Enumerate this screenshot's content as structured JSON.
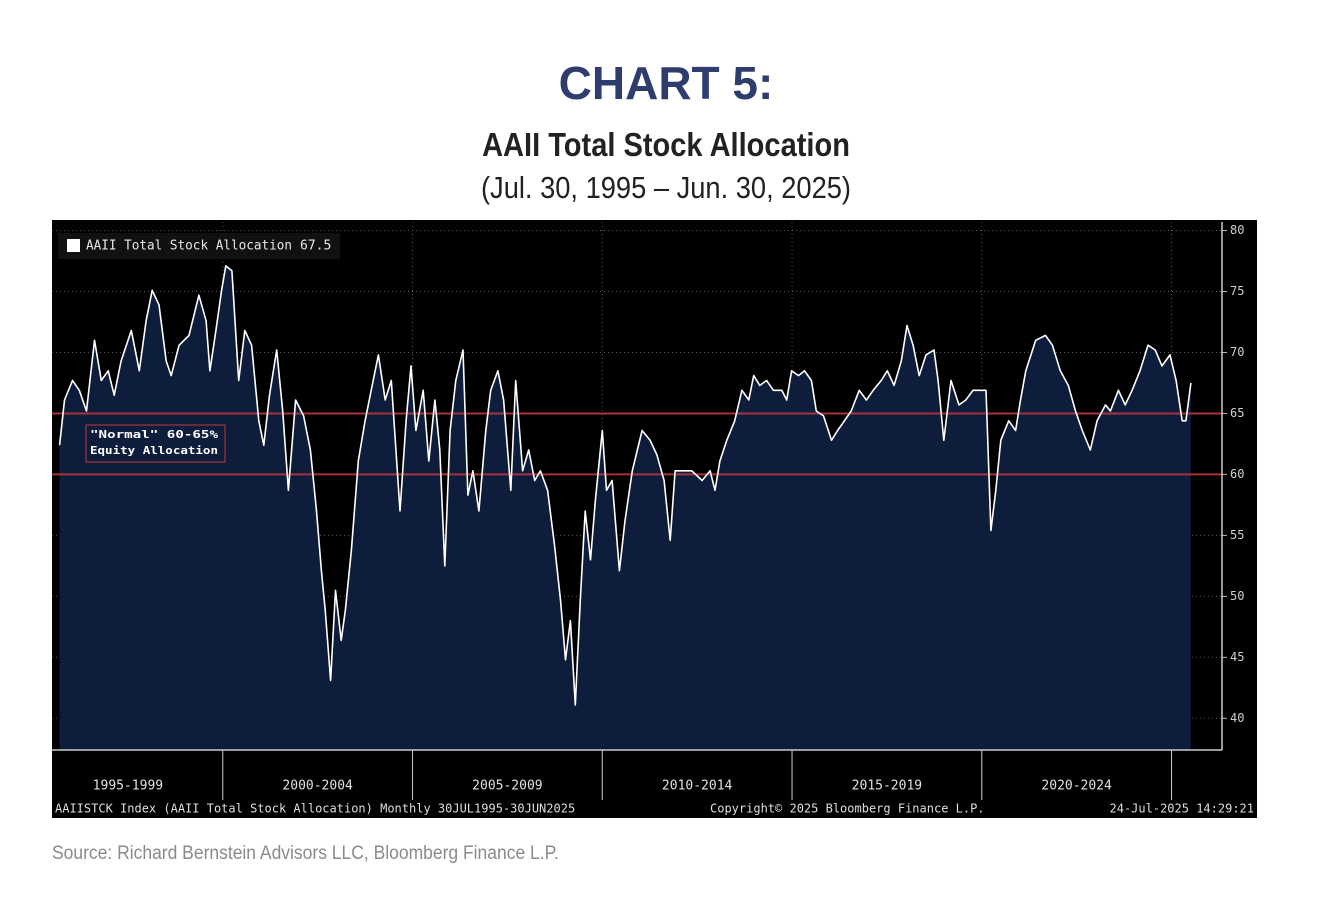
{
  "chart_data": {
    "type": "area",
    "title": "CHART 5:",
    "subtitle": "AAII Total Stock Allocation",
    "date_range": "(Jul. 30, 1995 – Jun. 30, 2025)",
    "source": "Source: Richard Bernstein Advisors LLC, Bloomberg Finance L.P.",
    "footer": [
      "AAIISTCK Index (AAII Total Stock Allocation) Monthly 30JUL1995-30JUN2025",
      "Copyright© 2025 Bloomberg Finance L.P.",
      "24-Jul-2025 14:29:21"
    ],
    "legend_value": 67.5,
    "annotation": [
      "\"Normal\" 60-65%",
      "Equity Allocation"
    ],
    "reference_lines": [
      60,
      65
    ],
    "reference_color": "#a8323c",
    "y_axis_side": "right",
    "grid": true,
    "xlim": [
      1995.5,
      2026.33
    ],
    "ylim": [
      37.4,
      80.7
    ],
    "yticks": [
      40,
      45,
      50,
      55,
      60,
      65,
      70,
      75,
      80
    ],
    "xticks": [
      {
        "value": 1997.5,
        "label": "1995-1999"
      },
      {
        "value": 2002.5,
        "label": "2000-2004"
      },
      {
        "value": 2007.5,
        "label": "2005-2009"
      },
      {
        "value": 2012.5,
        "label": "2010-2014"
      },
      {
        "value": 2017.5,
        "label": "2015-2019"
      },
      {
        "value": 2022.5,
        "label": "2020-2024"
      }
    ],
    "x": [
      1995.7,
      1995.83,
      1996.04,
      1996.22,
      1996.41,
      1996.62,
      1996.8,
      1996.98,
      1997.14,
      1997.32,
      1997.59,
      1997.8,
      1997.98,
      1998.14,
      1998.32,
      1998.51,
      1998.64,
      1998.85,
      1999.11,
      1999.37,
      1999.56,
      1999.66,
      1999.82,
      1999.97,
      2000.08,
      2000.24,
      2000.42,
      2000.58,
      2000.76,
      2000.95,
      2001.08,
      2001.23,
      2001.42,
      2001.58,
      2001.73,
      2001.92,
      2002.13,
      2002.31,
      2002.47,
      2002.6,
      2002.7,
      2002.84,
      2002.97,
      2003.12,
      2003.23,
      2003.39,
      2003.57,
      2003.75,
      2003.91,
      2004.1,
      2004.28,
      2004.44,
      2004.67,
      2004.83,
      2004.96,
      2005.09,
      2005.28,
      2005.43,
      2005.59,
      2005.72,
      2005.85,
      2005.99,
      2006.14,
      2006.33,
      2006.46,
      2006.59,
      2006.75,
      2006.93,
      2007.06,
      2007.25,
      2007.4,
      2007.59,
      2007.72,
      2007.9,
      2008.06,
      2008.22,
      2008.37,
      2008.56,
      2008.74,
      2008.9,
      2009.03,
      2009.16,
      2009.29,
      2009.42,
      2009.55,
      2009.69,
      2009.82,
      2010.0,
      2010.11,
      2010.26,
      2010.45,
      2010.6,
      2010.79,
      2011.05,
      2011.26,
      2011.44,
      2011.63,
      2011.79,
      2011.92,
      2012.1,
      2012.36,
      2012.63,
      2012.84,
      2012.97,
      2013.1,
      2013.28,
      2013.49,
      2013.68,
      2013.86,
      2013.99,
      2014.15,
      2014.33,
      2014.51,
      2014.73,
      2014.86,
      2014.99,
      2015.17,
      2015.33,
      2015.51,
      2015.64,
      2015.83,
      2016.04,
      2016.2,
      2016.38,
      2016.56,
      2016.77,
      2016.96,
      2017.14,
      2017.35,
      2017.51,
      2017.69,
      2017.88,
      2018.03,
      2018.19,
      2018.35,
      2018.53,
      2018.74,
      2018.85,
      2019.0,
      2019.19,
      2019.4,
      2019.58,
      2019.77,
      2019.92,
      2020.11,
      2020.24,
      2020.37,
      2020.5,
      2020.71,
      2020.89,
      2021.02,
      2021.16,
      2021.42,
      2021.68,
      2021.86,
      2022.07,
      2022.28,
      2022.47,
      2022.65,
      2022.86,
      2023.04,
      2023.26,
      2023.39,
      2023.6,
      2023.78,
      2023.96,
      2024.17,
      2024.38,
      2024.57,
      2024.75,
      2024.96,
      2025.12,
      2025.28,
      2025.38,
      2025.51
    ],
    "series": [
      {
        "name": "AAII Total Stock Allocation",
        "color": "#ffffff",
        "fill": "#0e1d3c",
        "values": [
          62.4,
          66.1,
          67.7,
          66.9,
          65.2,
          71.0,
          67.7,
          68.5,
          66.5,
          69.3,
          71.8,
          68.5,
          72.6,
          75.1,
          73.9,
          69.3,
          68.1,
          70.6,
          71.4,
          74.7,
          72.6,
          68.5,
          71.8,
          75.1,
          77.1,
          76.7,
          67.7,
          71.8,
          70.6,
          64.4,
          62.4,
          66.5,
          70.2,
          65.2,
          58.7,
          66.1,
          64.8,
          62.0,
          57.0,
          52.1,
          48.9,
          43.1,
          50.5,
          46.4,
          48.9,
          53.8,
          61.1,
          64.4,
          66.9,
          69.8,
          66.1,
          67.7,
          57.0,
          64.4,
          68.9,
          63.6,
          66.9,
          61.1,
          66.1,
          62.0,
          52.5,
          63.6,
          67.7,
          70.2,
          58.3,
          60.3,
          57.0,
          63.6,
          66.9,
          68.5,
          66.1,
          58.7,
          67.7,
          60.3,
          62.0,
          59.5,
          60.3,
          58.7,
          54.2,
          49.7,
          44.8,
          48.0,
          41.1,
          49.7,
          57.0,
          53.0,
          57.9,
          63.6,
          58.7,
          59.5,
          52.1,
          56.2,
          60.3,
          63.6,
          62.8,
          61.6,
          59.5,
          54.6,
          60.3,
          60.3,
          60.3,
          59.5,
          60.3,
          58.7,
          61.1,
          62.8,
          64.4,
          66.9,
          66.1,
          68.1,
          67.3,
          67.7,
          66.9,
          66.9,
          66.1,
          68.5,
          68.1,
          68.5,
          67.7,
          65.2,
          64.8,
          62.8,
          63.6,
          64.4,
          65.2,
          66.9,
          66.1,
          66.9,
          67.7,
          68.5,
          67.3,
          69.3,
          72.2,
          70.6,
          68.1,
          69.8,
          70.2,
          67.7,
          62.8,
          67.7,
          65.7,
          66.1,
          66.9,
          66.9,
          66.9,
          55.4,
          58.7,
          62.8,
          64.4,
          63.6,
          66.1,
          68.5,
          71.0,
          71.4,
          70.6,
          68.5,
          67.3,
          65.2,
          63.6,
          62.0,
          64.4,
          65.7,
          65.2,
          66.9,
          65.7,
          66.9,
          68.5,
          70.6,
          70.2,
          68.9,
          69.8,
          67.7,
          64.4,
          64.4,
          67.5
        ]
      }
    ]
  }
}
